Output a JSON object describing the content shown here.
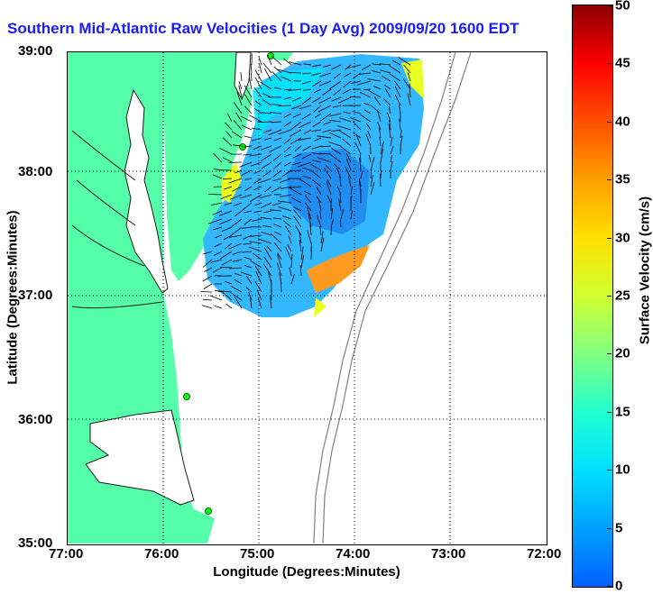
{
  "map": {
    "title": "Southern Mid-Atlantic Raw Velocities (1 Day Avg) 2009/09/20 1600 EDT",
    "xlabel": "Longitude (Degrees:Minutes)",
    "ylabel": "Latitude (Degrees:Minutes)",
    "x_ticks": [
      "77:00",
      "76:00",
      "75:00",
      "74:00",
      "73:00",
      "72:00"
    ],
    "y_ticks": [
      "39:00",
      "38:00",
      "37:00",
      "36:00",
      "35:00"
    ],
    "colorbar": {
      "label": "Surface Velocity (cm/s)",
      "ticks": [
        "0",
        "5",
        "10",
        "15",
        "20",
        "25",
        "30",
        "35",
        "40",
        "45",
        "50"
      ],
      "min": 0,
      "max": 50
    },
    "colors": {
      "land": "#55ffaa",
      "water": "#ffffff",
      "title": "#1a1aff",
      "bathymetry": "#808080",
      "station": "#00ff00"
    }
  }
}
